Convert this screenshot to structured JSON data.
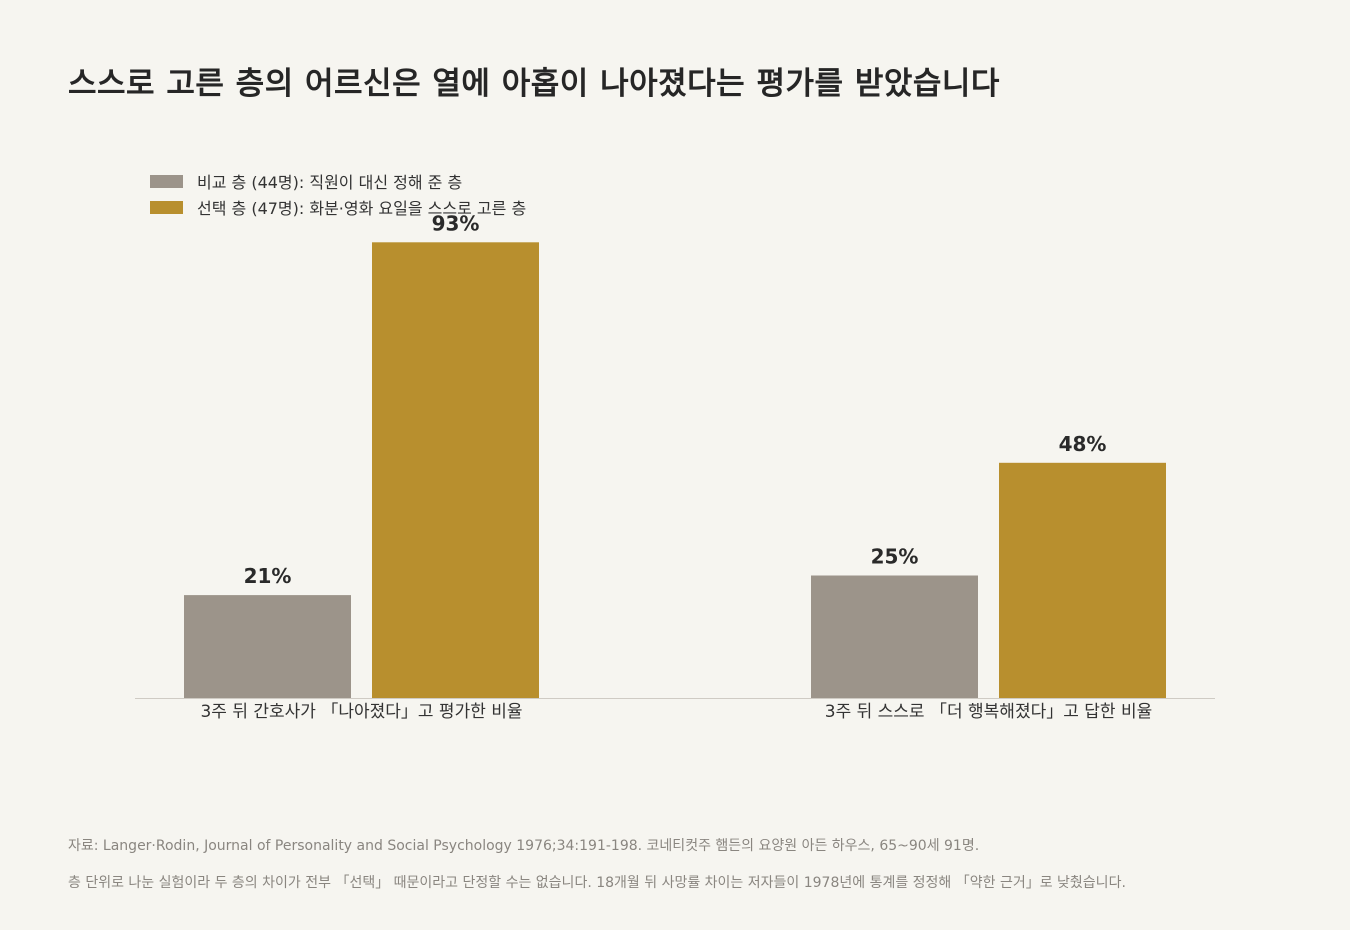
{
  "title": "스스로 고른 층의 어르신은 열에 아홉이 나아졌다는 평가를 받았습니다",
  "legend": [
    {
      "label": "비교 층 (44명): 직원이 대신 정해 준 층",
      "color": "#9c948a"
    },
    {
      "label": "선택 층 (47명): 화분·영화 요일을 스스로 고른 층",
      "color": "#b88f2e"
    }
  ],
  "chart_data": {
    "type": "bar",
    "categories": [
      "3주 뒤 간호사가 「나아졌다」고 평가한 비율",
      "3주 뒤 스스로 「더 행복해졌다」고 답한 비율"
    ],
    "series": [
      {
        "name": "비교 층 (44명): 직원이 대신 정해 준 층",
        "values": [
          21,
          25
        ],
        "color": "#9c948a"
      },
      {
        "name": "선택 층 (47명): 화분·영화 요일을 스스로 고른 층",
        "values": [
          93,
          48
        ],
        "color": "#b88f2e"
      }
    ],
    "value_suffix": "%",
    "ylim": [
      0,
      100
    ],
    "grid": false,
    "legend_position": "top-left"
  },
  "footnotes": {
    "source": "자료: Langer·Rodin, Journal of Personality and Social Psychology 1976;34:191-198. 코네티컷주 햄든의 요양원 아든 하우스, 65~90세 91명.",
    "caveat": "층 단위로 나눈 실험이라 두 층의 차이가 전부 「선택」 때문이라고 단정할 수는 없습니다. 18개월 뒤 사망률 차이는 저자들이 1978년에 통계를 정정해 「약한 근거」로 낮췄습니다."
  }
}
